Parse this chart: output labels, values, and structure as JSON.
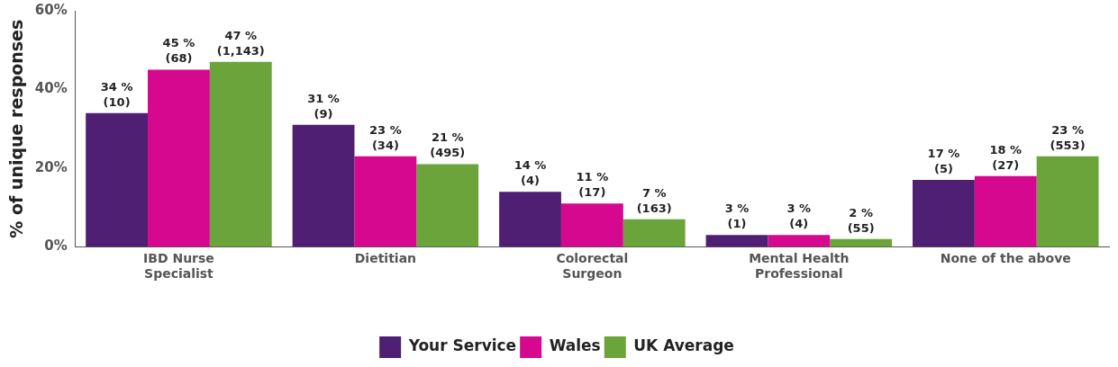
{
  "chart_data": {
    "type": "bar",
    "ylabel": "% of unique responses",
    "categories": [
      "IBD Nurse Specialist",
      "Dietitian",
      "Colorectal Surgeon",
      "Mental Health Professional",
      "None of the above"
    ],
    "series": [
      {
        "name": "Your Service",
        "color": "#4f1f73",
        "values": [
          34,
          31,
          14,
          3,
          17
        ],
        "value_labels": [
          "34 %\n(10)",
          "31 %\n(9)",
          "14 %\n(4)",
          "3 %\n(1)",
          "17 %\n(5)"
        ]
      },
      {
        "name": "Wales",
        "color": "#d6088f",
        "values": [
          45,
          23,
          11,
          3,
          18
        ],
        "value_labels": [
          "45 %\n(68)",
          "23 %\n(34)",
          "11 %\n(17)",
          "3 %\n(4)",
          "18 %\n(27)"
        ]
      },
      {
        "name": "UK Average",
        "color": "#6aa43a",
        "values": [
          47,
          21,
          7,
          2,
          23
        ],
        "value_labels": [
          "47 %\n(1,143)",
          "21 %\n(495)",
          "7 %\n(163)",
          "2 %\n(55)",
          "23 %\n(553)"
        ]
      }
    ],
    "ylim": [
      0,
      60
    ],
    "yticks": [
      {
        "value": 0,
        "label": "0%"
      },
      {
        "value": 20,
        "label": "20%"
      },
      {
        "value": 40,
        "label": "40%"
      },
      {
        "value": 60,
        "label": "60%"
      }
    ],
    "grid": false,
    "legend": "bottom"
  }
}
